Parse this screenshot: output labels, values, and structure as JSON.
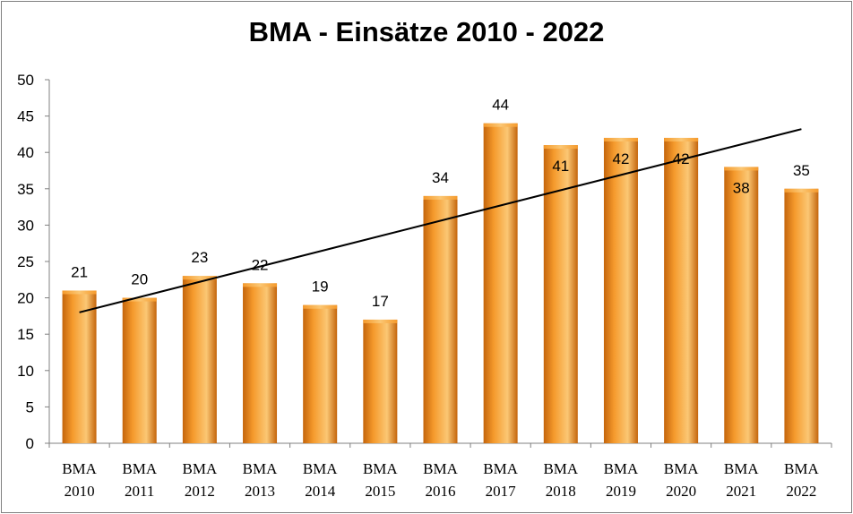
{
  "chart_data": {
    "type": "bar",
    "title": "BMA - Einsätze 2010 - 2022",
    "categories": [
      [
        "BMA",
        "2010"
      ],
      [
        "BMA",
        "2011"
      ],
      [
        "BMA",
        "2012"
      ],
      [
        "BMA",
        "2013"
      ],
      [
        "BMA",
        "2014"
      ],
      [
        "BMA",
        "2015"
      ],
      [
        "BMA",
        "2016"
      ],
      [
        "BMA",
        "2017"
      ],
      [
        "BMA",
        "2018"
      ],
      [
        "BMA",
        "2019"
      ],
      [
        "BMA",
        "2020"
      ],
      [
        "BMA",
        "2021"
      ],
      [
        "BMA",
        "2022"
      ]
    ],
    "values": [
      21,
      20,
      23,
      22,
      19,
      17,
      34,
      44,
      41,
      42,
      42,
      38,
      35
    ],
    "data_labels": [
      "21",
      "20",
      "23",
      "22",
      "19",
      "17",
      "34",
      "44",
      "41",
      "42",
      "42",
      "38",
      "35"
    ],
    "ylim": [
      0,
      50
    ],
    "yticks": [
      "0",
      "5",
      "10",
      "15",
      "20",
      "25",
      "30",
      "35",
      "40",
      "45",
      "50"
    ],
    "trendline": {
      "type": "linear",
      "start": 18,
      "end": 43.2
    },
    "grid": false,
    "legend": "none",
    "colors": {
      "bar_light": "#fbc774",
      "bar_mid": "#f59a2c",
      "bar_dark": "#c4650c",
      "trendline": "#000000",
      "axis": "#808080"
    }
  }
}
